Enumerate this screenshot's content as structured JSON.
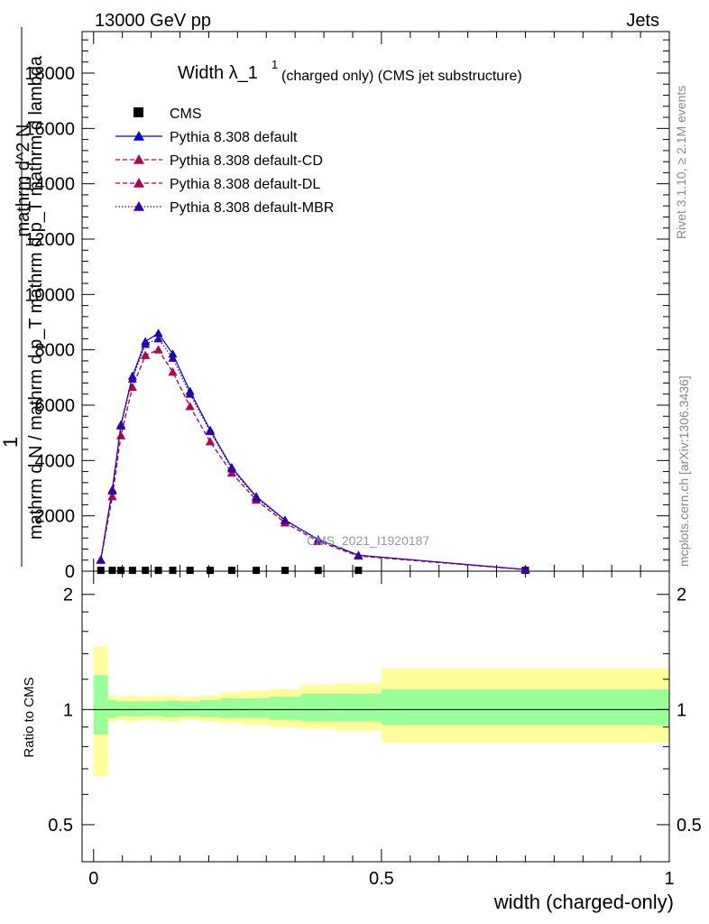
{
  "header": {
    "left": "13000 GeV pp",
    "right": "Jets"
  },
  "plot_title": {
    "main": "Width λ_1",
    "sup": "1",
    "sub": "(charged only) (CMS jet substructure)"
  },
  "side_labels": {
    "rivet": "Rivet 3.1.10, ≥ 2.1M events",
    "mcplots": "mcplots.cern.ch [arXiv:1306.3436]"
  },
  "watermark": "CMS_2021_I1920187",
  "ylabel_main": {
    "line1": "1",
    "line2": "mathrm d N / mathrm d p_T mathrm d p_T mathrm d lambda",
    "line3": "mathrm d^2 N"
  },
  "ylabel_ratio": "Ratio to CMS",
  "xlabel": "width (charged-only)",
  "colors": {
    "cms": "#000000",
    "default": "#0000cc",
    "cd": "#b0005a",
    "dl": "#b0004f",
    "mbr": "#3300aa",
    "band_inner": "#99ff99",
    "band_outer": "#ffff99"
  },
  "chart_data": {
    "type": "line",
    "x_ticks": [
      "0",
      "0.5",
      "1"
    ],
    "y_ticks_main": [
      "0",
      "2000",
      "4000",
      "6000",
      "8000",
      "10000",
      "12000",
      "14000",
      "16000",
      "18000"
    ],
    "y_ticks_ratio": [
      "0.5",
      "1",
      "2"
    ],
    "xlim": [
      -0.02,
      1.0
    ],
    "ylim_main": [
      0,
      19500
    ],
    "ylim_ratio": [
      0.4,
      2.3
    ],
    "log_ratio": true,
    "legend_position": "top-left",
    "x": [
      0.0125,
      0.0325,
      0.0475,
      0.0675,
      0.09,
      0.1125,
      0.1375,
      0.1675,
      0.2025,
      0.24,
      0.2825,
      0.3325,
      0.39,
      0.46,
      0.75
    ],
    "series": [
      {
        "name": "CMS",
        "marker": "square",
        "values": [
          30,
          30,
          30,
          30,
          30,
          30,
          30,
          30,
          30,
          30,
          30,
          30,
          30,
          30,
          30
        ]
      },
      {
        "name": "Pythia 8.308 default",
        "marker": "triangle",
        "line": "solid",
        "values": [
          420,
          2950,
          5300,
          7050,
          8300,
          8600,
          7850,
          6500,
          5100,
          3750,
          2700,
          1850,
          1150,
          580,
          60
        ]
      },
      {
        "name": "Pythia 8.308 default-CD",
        "marker": "triangle",
        "line": "dashed",
        "values": [
          400,
          2700,
          4900,
          6650,
          7800,
          8000,
          7200,
          5950,
          4680,
          3550,
          2570,
          1750,
          1080,
          550,
          55
        ]
      },
      {
        "name": "Pythia 8.308 default-DL",
        "marker": "triangle",
        "line": "dashed",
        "values": [
          400,
          2700,
          4900,
          6650,
          7800,
          8000,
          7200,
          5950,
          4680,
          3550,
          2570,
          1750,
          1080,
          550,
          55
        ]
      },
      {
        "name": "Pythia 8.308 default-MBR",
        "marker": "triangle",
        "line": "dotted",
        "values": [
          410,
          2900,
          5250,
          6950,
          8200,
          8400,
          7700,
          6400,
          5050,
          3700,
          2650,
          1830,
          1130,
          570,
          58
        ]
      }
    ],
    "ratio_bands": {
      "edges": [
        0.0,
        0.025,
        0.04,
        0.055,
        0.08,
        0.1,
        0.125,
        0.15,
        0.185,
        0.22,
        0.26,
        0.305,
        0.36,
        0.42,
        0.5,
        1.0
      ],
      "inner_lo": [
        0.86,
        0.95,
        0.96,
        0.96,
        0.96,
        0.96,
        0.955,
        0.96,
        0.955,
        0.95,
        0.95,
        0.94,
        0.93,
        0.93,
        0.91
      ],
      "inner_hi": [
        1.23,
        1.06,
        1.05,
        1.05,
        1.05,
        1.05,
        1.055,
        1.05,
        1.06,
        1.07,
        1.07,
        1.08,
        1.1,
        1.1,
        1.13
      ],
      "outer_lo": [
        0.67,
        0.93,
        0.94,
        0.93,
        0.94,
        0.935,
        0.93,
        0.94,
        0.93,
        0.92,
        0.91,
        0.9,
        0.89,
        0.88,
        0.82
      ],
      "outer_hi": [
        1.46,
        1.09,
        1.08,
        1.09,
        1.08,
        1.085,
        1.09,
        1.08,
        1.09,
        1.11,
        1.12,
        1.13,
        1.16,
        1.17,
        1.28
      ]
    }
  }
}
